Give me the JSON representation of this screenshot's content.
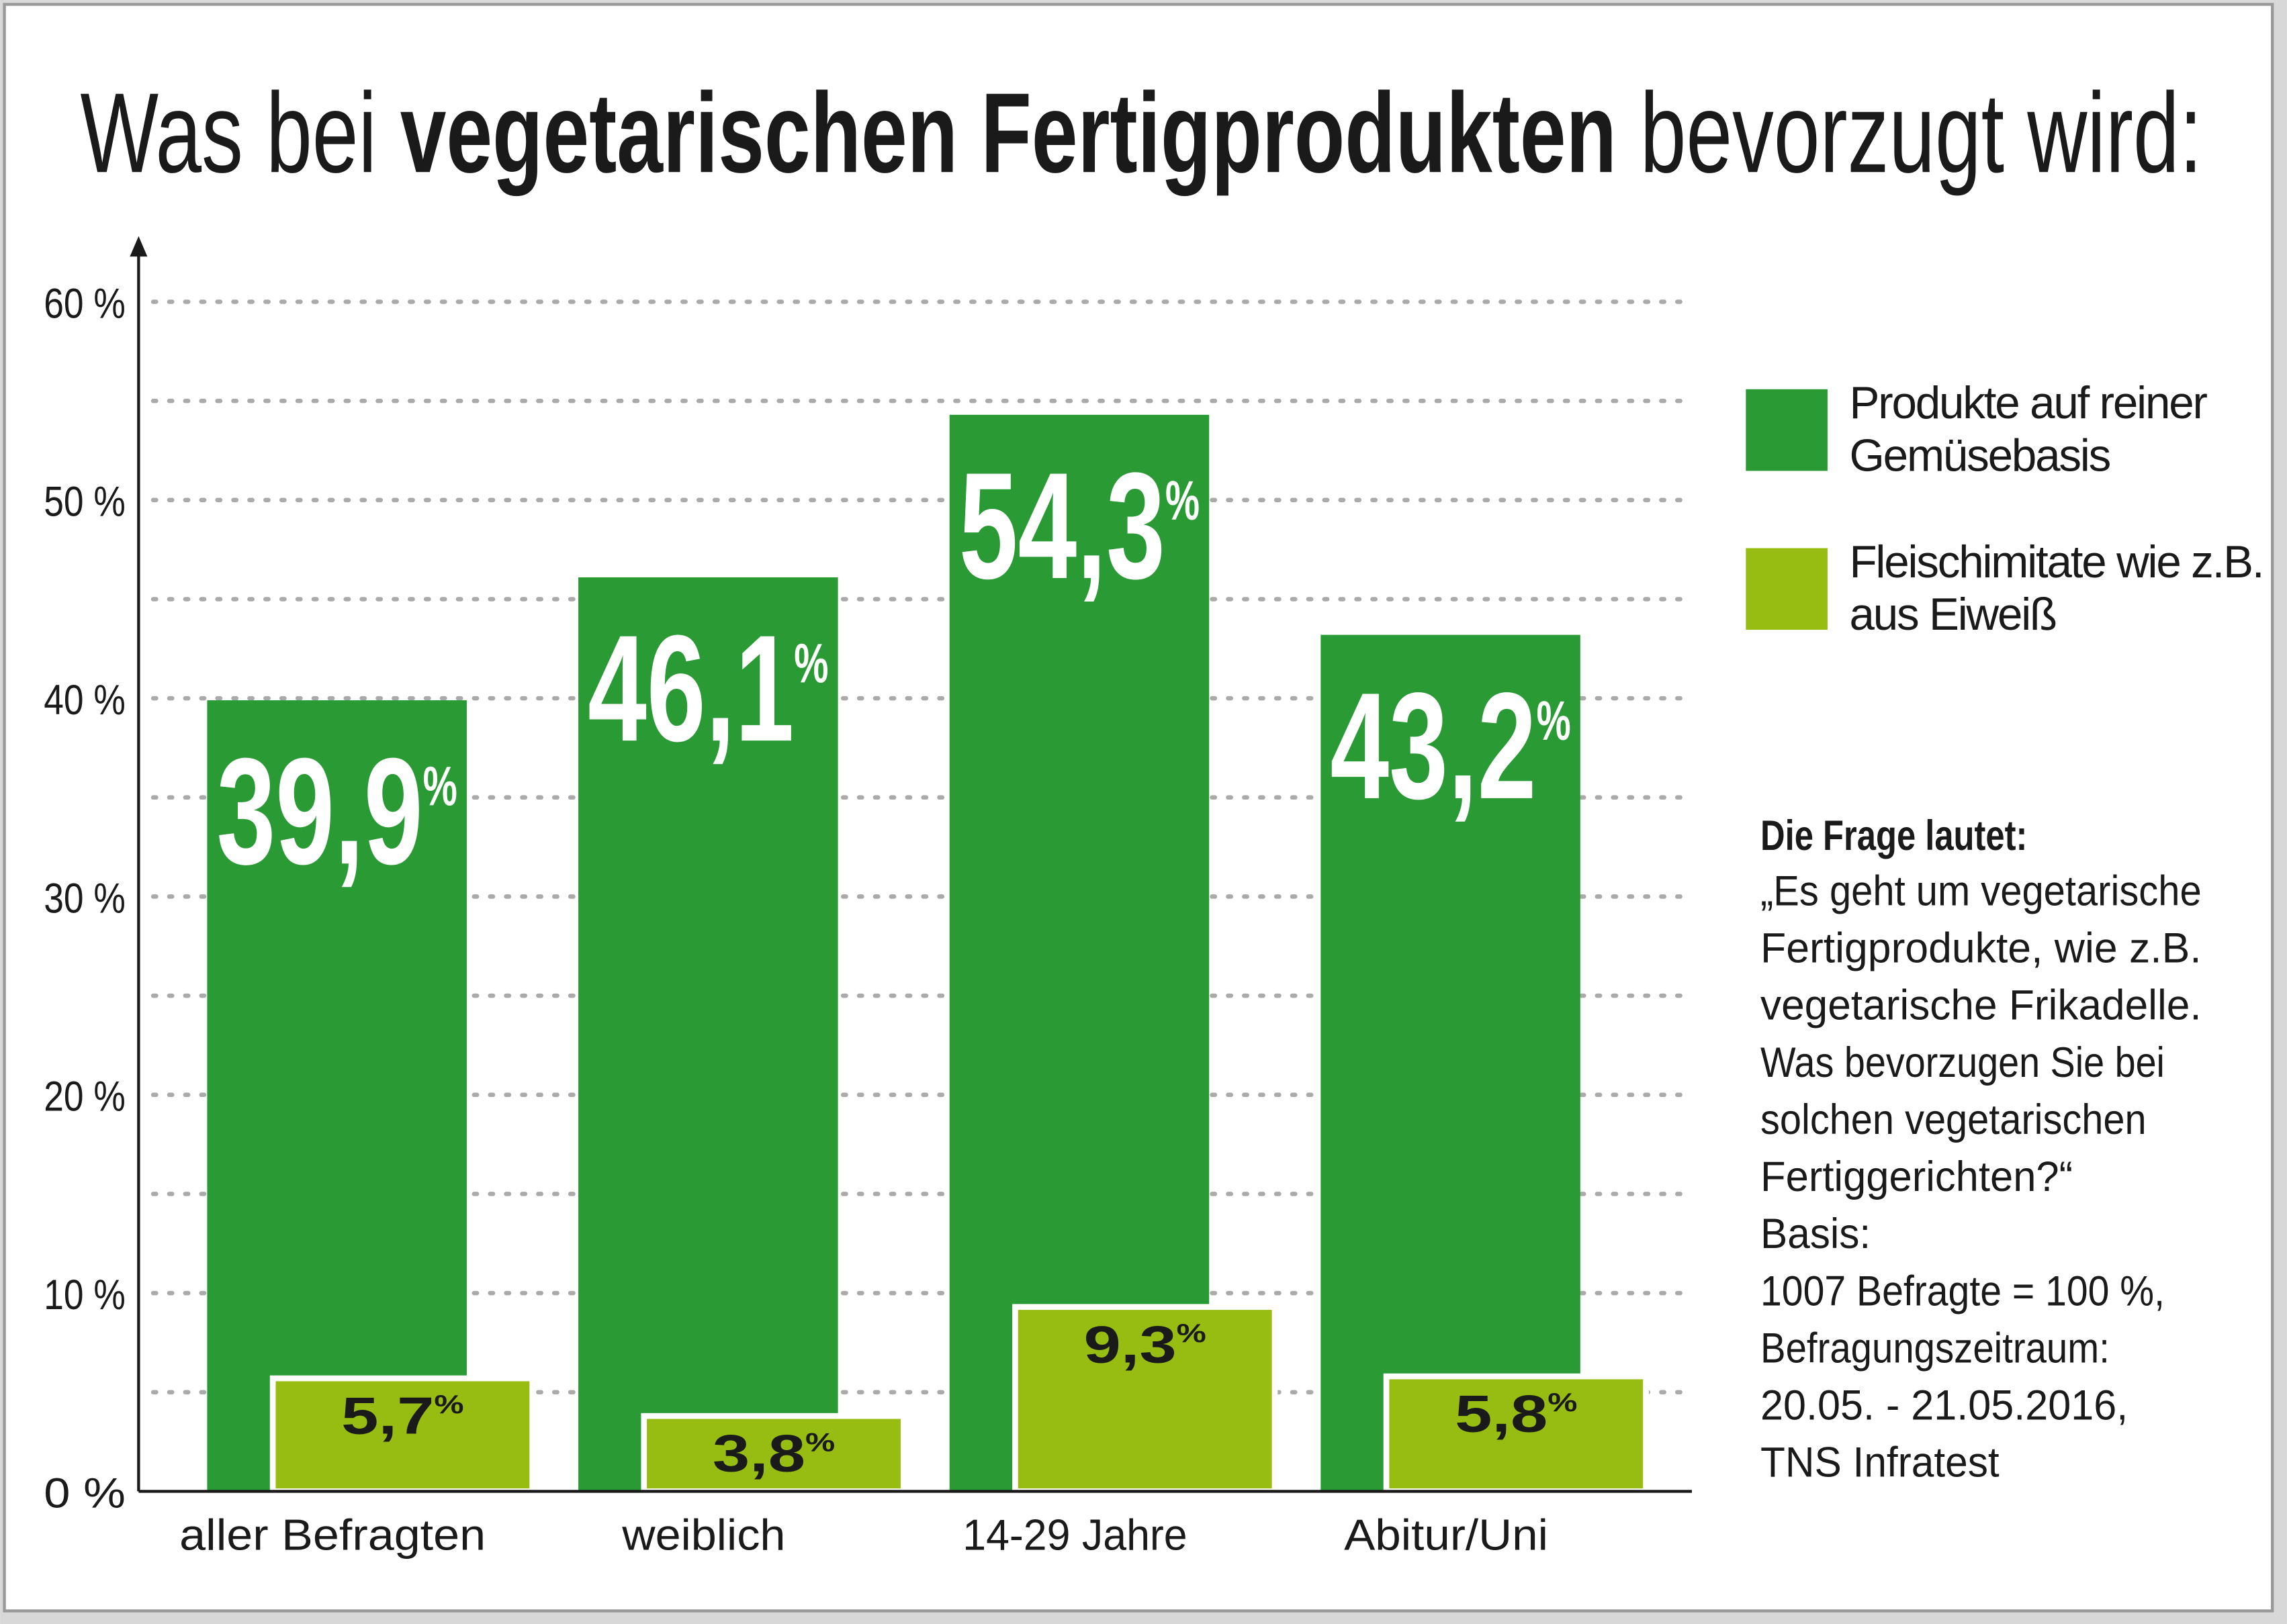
{
  "chart_data": {
    "type": "bar",
    "title": [
      "Was bei",
      "vegetarischen Fertigprodukten",
      "bevorzugt wird:"
    ],
    "categories": [
      "aller Befragten",
      "weiblich",
      "14-29 Jahre",
      "Abitur/Uni"
    ],
    "series": [
      {
        "name": "Produkte auf reiner Gemüsebasis",
        "color": "#2a9a35",
        "values": [
          39.9,
          46.1,
          54.3,
          43.2
        ],
        "value_labels": [
          "39,9%",
          "46,1%",
          "54,3%",
          "43,2%"
        ]
      },
      {
        "name": "Fleischimitate wie z.B. aus Eiweiß",
        "color": "#98bd12",
        "values": [
          5.7,
          3.8,
          9.3,
          5.8
        ],
        "value_labels": [
          "5,7%",
          "3,8%",
          "9,3%",
          "5,8%"
        ]
      }
    ],
    "ylim": [
      0,
      60
    ],
    "yticks": [
      {
        "value": 0,
        "label": "0 %"
      },
      {
        "value": 10,
        "label": "10 %"
      },
      {
        "value": 20,
        "label": "20 %"
      },
      {
        "value": 30,
        "label": "30 %"
      },
      {
        "value": 40,
        "label": "40 %"
      },
      {
        "value": 50,
        "label": "50 %"
      },
      {
        "value": 60,
        "label": "60 %"
      }
    ],
    "minor_yticks": [
      5,
      15,
      25,
      35,
      45,
      55
    ],
    "grid": true,
    "note": {
      "heading": "Die Frage lautet:",
      "lines": [
        "„Es geht um vegetarische",
        "Fertigprodukte, wie z.B.",
        "vegetarische Frikadelle.",
        "Was bevorzugen Sie bei",
        "solchen vegetarischen",
        "Fertiggerichten?“",
        "Basis:",
        "1007 Befragte = 100 %,",
        "Befragungszeitraum:",
        "20.05. - 21.05.2016,",
        "TNS Infratest"
      ]
    }
  }
}
